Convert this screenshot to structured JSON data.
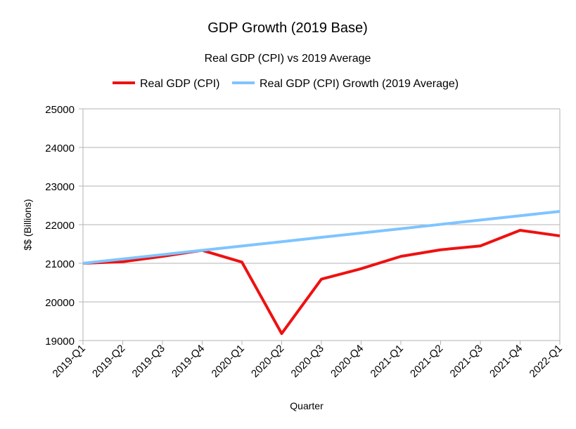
{
  "chart_data": {
    "type": "line",
    "title": "GDP Growth (2019 Base)",
    "subtitle": "Real GDP (CPI) vs 2019 Average",
    "xlabel": "Quarter",
    "ylabel": "$$ (Billions)",
    "ylim": [
      19000,
      25000
    ],
    "yticks": [
      19000,
      20000,
      21000,
      22000,
      23000,
      24000,
      25000
    ],
    "grid": true,
    "legend_position": "top",
    "categories": [
      "2019-Q1",
      "2019-Q2",
      "2019-Q3",
      "2019-Q4",
      "2020-Q1",
      "2020-Q2",
      "2020-Q3",
      "2020-Q4",
      "2021-Q1",
      "2021-Q2",
      "2021-Q3",
      "2021-Q4",
      "2022-Q1"
    ],
    "series": [
      {
        "name": "Real GDP (CPI)",
        "color": "#ee1111",
        "values": [
          21000,
          21040,
          21180,
          21335,
          21030,
          19180,
          20590,
          20860,
          21180,
          21350,
          21450,
          21855,
          21710
        ]
      },
      {
        "name": "Real GDP (CPI) Growth (2019 Average)",
        "color": "#7fc4ff",
        "values": [
          21000,
          21112,
          21224,
          21336,
          21448,
          21560,
          21672,
          21784,
          21896,
          22008,
          22120,
          22232,
          22344
        ]
      }
    ]
  }
}
